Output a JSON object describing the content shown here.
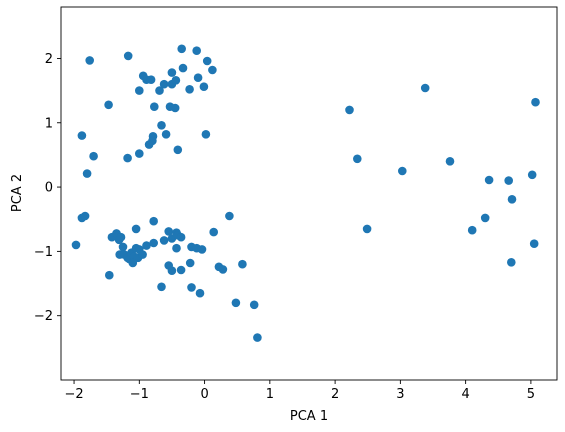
{
  "chart_data": {
    "type": "scatter",
    "title": "",
    "xlabel": "PCA 1",
    "ylabel": "PCA 2",
    "xlim": [
      -2.2,
      5.4
    ],
    "ylim": [
      -3.0,
      2.8
    ],
    "xticks": [
      -2,
      -1,
      0,
      1,
      2,
      3,
      4,
      5
    ],
    "yticks": [
      -2,
      -1,
      0,
      1,
      2
    ],
    "grid": false,
    "marker_color": "#1f77b4",
    "points": [
      [
        -1.76,
        1.97
      ],
      [
        -1.17,
        2.04
      ],
      [
        -0.35,
        2.15
      ],
      [
        -0.12,
        2.12
      ],
      [
        0.04,
        1.96
      ],
      [
        0.12,
        1.82
      ],
      [
        -0.33,
        1.85
      ],
      [
        -0.5,
        1.78
      ],
      [
        -0.94,
        1.73
      ],
      [
        -0.89,
        1.67
      ],
      [
        -0.82,
        1.67
      ],
      [
        -0.62,
        1.6
      ],
      [
        -0.5,
        1.6
      ],
      [
        -0.44,
        1.66
      ],
      [
        -0.1,
        1.7
      ],
      [
        -0.23,
        1.52
      ],
      [
        -0.01,
        1.56
      ],
      [
        -1.0,
        1.5
      ],
      [
        -0.69,
        1.5
      ],
      [
        -1.47,
        1.28
      ],
      [
        -0.77,
        1.25
      ],
      [
        -0.53,
        1.25
      ],
      [
        -0.45,
        1.23
      ],
      [
        -0.66,
        0.96
      ],
      [
        -0.59,
        0.82
      ],
      [
        0.02,
        0.82
      ],
      [
        -1.88,
        0.8
      ],
      [
        -0.79,
        0.79
      ],
      [
        -0.8,
        0.72
      ],
      [
        -0.85,
        0.66
      ],
      [
        -1.0,
        0.52
      ],
      [
        -0.41,
        0.58
      ],
      [
        -1.7,
        0.48
      ],
      [
        -1.18,
        0.45
      ],
      [
        -1.8,
        0.21
      ],
      [
        -1.97,
        -0.9
      ],
      [
        -1.88,
        -0.48
      ],
      [
        -1.83,
        -0.45
      ],
      [
        -1.42,
        -0.78
      ],
      [
        -1.35,
        -0.72
      ],
      [
        -1.31,
        -0.82
      ],
      [
        -1.28,
        -0.78
      ],
      [
        -1.25,
        -0.93
      ],
      [
        -1.23,
        -1.05
      ],
      [
        -1.3,
        -1.05
      ],
      [
        -1.18,
        -1.1
      ],
      [
        -1.15,
        -1.12
      ],
      [
        -1.12,
        -1.02
      ],
      [
        -1.08,
        -1.08
      ],
      [
        -1.05,
        -0.95
      ],
      [
        -1.0,
        -0.97
      ],
      [
        -1.02,
        -1.1
      ],
      [
        -1.1,
        -1.18
      ],
      [
        -0.95,
        -1.05
      ],
      [
        -1.05,
        -0.65
      ],
      [
        -0.89,
        -0.91
      ],
      [
        -0.78,
        -0.87
      ],
      [
        -0.78,
        -0.53
      ],
      [
        -0.62,
        -0.83
      ],
      [
        -0.55,
        -0.69
      ],
      [
        -0.5,
        -0.8
      ],
      [
        -0.43,
        -0.71
      ],
      [
        -0.41,
        -0.75
      ],
      [
        -0.36,
        -0.78
      ],
      [
        -0.2,
        -0.93
      ],
      [
        -0.12,
        -0.95
      ],
      [
        -0.04,
        -0.97
      ],
      [
        0.14,
        -0.7
      ],
      [
        0.38,
        -0.45
      ],
      [
        -0.43,
        -0.95
      ],
      [
        -0.55,
        -1.22
      ],
      [
        -0.5,
        -1.3
      ],
      [
        -0.36,
        -1.29
      ],
      [
        -0.22,
        -1.18
      ],
      [
        -0.2,
        -1.56
      ],
      [
        -0.07,
        -1.65
      ],
      [
        -0.66,
        -1.55
      ],
      [
        -1.46,
        -1.37
      ],
      [
        0.22,
        -1.24
      ],
      [
        0.28,
        -1.28
      ],
      [
        0.48,
        -1.8
      ],
      [
        0.58,
        -1.2
      ],
      [
        0.76,
        -1.83
      ],
      [
        0.81,
        -2.34
      ],
      [
        2.22,
        1.2
      ],
      [
        2.34,
        0.44
      ],
      [
        2.49,
        -0.65
      ],
      [
        3.03,
        0.25
      ],
      [
        3.38,
        1.54
      ],
      [
        3.76,
        0.4
      ],
      [
        4.1,
        -0.67
      ],
      [
        4.3,
        -0.48
      ],
      [
        4.36,
        0.11
      ],
      [
        4.66,
        0.1
      ],
      [
        4.71,
        -0.19
      ],
      [
        4.7,
        -1.17
      ],
      [
        5.02,
        0.19
      ],
      [
        5.05,
        -0.88
      ],
      [
        5.07,
        1.32
      ]
    ]
  }
}
